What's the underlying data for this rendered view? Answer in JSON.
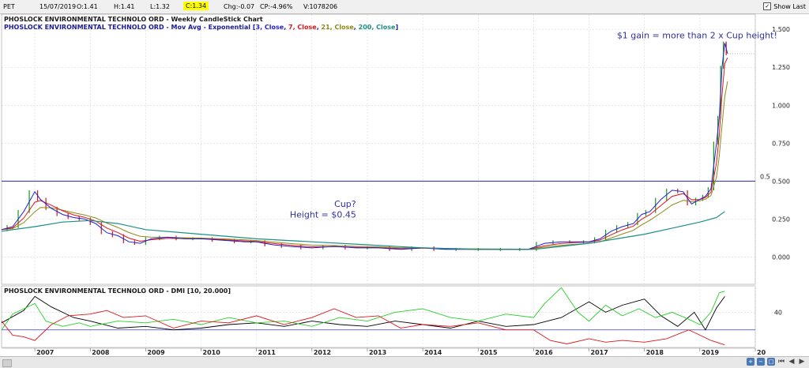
{
  "header": {
    "symbol": "PET",
    "date": "15/07/2019",
    "open": "O:1.41",
    "high": "H:1.41",
    "low": "L:1.32",
    "close": "C:1.34",
    "change": "Chg:-0.07",
    "change_pct": "CP:-4.96%",
    "volume": "V:1078206",
    "show_last_label": "Show Last",
    "show_last_checked": "✓"
  },
  "colors": {
    "ema3": "#1f1fd6",
    "ema7": "#e0141a",
    "ema21": "#8d8a14",
    "ema200": "#1b8f86",
    "dmi_plus": "#27d027",
    "dmi_minus": "#e0141a",
    "adx": "#000000",
    "hline": "#2a2a9a",
    "annotation": "#3030a0"
  },
  "chart_data": [
    {
      "type": "line",
      "title": "PHOSLOCK ENVIRONMENTAL TECHNOLO ORD - Weekly CandleStick Chart",
      "legend_prefix": "PHOSLOCK ENVIRONMENTAL TECHNOLO ORD - Mov Avg - Exponential [",
      "legend_items": [
        {
          "label": "3, Close",
          "color": "#1f1fd6"
        },
        {
          "label": "7, Close",
          "color": "#e0141a"
        },
        {
          "label": "21, Close",
          "color": "#8d8a14"
        },
        {
          "label": "200, Close",
          "color": "#1b8f86"
        }
      ],
      "legend_suffix": "]",
      "ylim": [
        -0.18,
        1.6
      ],
      "yticks": [
        "0.000",
        "0.250",
        "0.500",
        "0.750",
        "1.000",
        "1.250",
        "1.500"
      ],
      "ytick_values": [
        0,
        0.25,
        0.5,
        0.75,
        1.0,
        1.25,
        1.5
      ],
      "xlim": [
        2006.4,
        2020.0
      ],
      "xticks": [
        "2007",
        "2008",
        "2009",
        "2010",
        "2011",
        "2012",
        "2013",
        "2014",
        "2015",
        "2016",
        "2017",
        "2018",
        "2019",
        "20"
      ],
      "xtick_values": [
        2007,
        2008,
        2009,
        2010,
        2011,
        2012,
        2013,
        2014,
        2015,
        2016,
        2017,
        2018,
        2019,
        2020
      ],
      "grid": true,
      "hline": {
        "value": 0.5,
        "label": "0.5"
      },
      "annotations": [
        {
          "text": "Cup?",
          "x": 2012.6,
          "y": 0.33
        },
        {
          "text": "Height = $0.45",
          "x": 2012.2,
          "y": 0.26
        },
        {
          "text": "$1 gain = more than 2 x Cup height!",
          "x": 2018.95,
          "y": 1.44
        }
      ],
      "price": {
        "x": [
          2006.4,
          2006.6,
          2006.8,
          2007.0,
          2007.1,
          2007.3,
          2007.5,
          2007.7,
          2007.9,
          2008.1,
          2008.3,
          2008.5,
          2008.7,
          2008.9,
          2009.1,
          2009.4,
          2009.7,
          2010.0,
          2010.4,
          2010.8,
          2011.0,
          2011.3,
          2011.6,
          2012.0,
          2012.4,
          2012.8,
          2013.2,
          2013.6,
          2014.0,
          2014.4,
          2014.8,
          2015.2,
          2015.6,
          2015.9,
          2016.2,
          2016.5,
          2016.8,
          2017.0,
          2017.2,
          2017.4,
          2017.6,
          2017.8,
          2017.95,
          2018.1,
          2018.3,
          2018.5,
          2018.7,
          2018.85,
          2019.0,
          2019.1,
          2019.2,
          2019.3,
          2019.35,
          2019.4,
          2019.45,
          2019.5
        ],
        "y": [
          0.18,
          0.2,
          0.3,
          0.43,
          0.38,
          0.32,
          0.28,
          0.26,
          0.25,
          0.22,
          0.16,
          0.14,
          0.1,
          0.09,
          0.12,
          0.13,
          0.12,
          0.12,
          0.11,
          0.1,
          0.1,
          0.08,
          0.07,
          0.06,
          0.07,
          0.06,
          0.06,
          0.05,
          0.06,
          0.05,
          0.05,
          0.05,
          0.05,
          0.05,
          0.09,
          0.1,
          0.1,
          0.1,
          0.12,
          0.17,
          0.2,
          0.22,
          0.28,
          0.3,
          0.38,
          0.44,
          0.43,
          0.35,
          0.38,
          0.4,
          0.45,
          0.75,
          0.92,
          1.25,
          1.41,
          1.34
        ]
      },
      "ema200": {
        "x": [
          2006.4,
          2007.0,
          2007.5,
          2008.0,
          2008.5,
          2009.0,
          2010.0,
          2011.0,
          2012.0,
          2013.0,
          2014.0,
          2015.0,
          2015.5,
          2016.0,
          2016.5,
          2017.0,
          2017.5,
          2018.0,
          2018.5,
          2019.0,
          2019.3,
          2019.45
        ],
        "y": [
          0.17,
          0.2,
          0.23,
          0.24,
          0.22,
          0.18,
          0.15,
          0.12,
          0.1,
          0.08,
          0.06,
          0.05,
          0.05,
          0.05,
          0.07,
          0.09,
          0.12,
          0.15,
          0.19,
          0.23,
          0.26,
          0.3
        ]
      }
    },
    {
      "type": "line",
      "title": "PHOSLOCK ENVIRONMENTAL TECHNOLO ORD - DMI [10, 20.000]",
      "yticks": [
        "40"
      ],
      "ytick_values": [
        40
      ],
      "ylim": [
        0,
        70
      ],
      "reference_level": 20,
      "series": [
        {
          "name": "ADX",
          "x": [
            2006.4,
            2006.8,
            2007.0,
            2007.3,
            2007.7,
            2008.0,
            2008.5,
            2009.0,
            2009.5,
            2010.0,
            2010.5,
            2011.0,
            2011.5,
            2012.0,
            2012.5,
            2013.0,
            2013.5,
            2014.0,
            2014.5,
            2015.0,
            2015.5,
            2016.0,
            2016.5,
            2017.0,
            2017.3,
            2017.6,
            2018.0,
            2018.3,
            2018.6,
            2018.9,
            2019.1,
            2019.3,
            2019.45
          ],
          "y": [
            28,
            42,
            58,
            46,
            34,
            30,
            22,
            24,
            20,
            22,
            26,
            28,
            24,
            30,
            26,
            24,
            30,
            26,
            22,
            30,
            24,
            26,
            34,
            52,
            40,
            48,
            55,
            36,
            24,
            40,
            20,
            45,
            58
          ]
        },
        {
          "name": "DI+",
          "x": [
            2006.4,
            2006.6,
            2006.8,
            2007.0,
            2007.2,
            2007.5,
            2007.8,
            2008.0,
            2008.5,
            2009.0,
            2009.5,
            2010.0,
            2010.5,
            2011.0,
            2011.5,
            2012.0,
            2012.5,
            2013.0,
            2013.5,
            2014.0,
            2014.5,
            2015.0,
            2015.5,
            2016.0,
            2016.2,
            2016.5,
            2016.8,
            2017.0,
            2017.3,
            2017.6,
            2017.9,
            2018.2,
            2018.5,
            2018.8,
            2019.0,
            2019.2,
            2019.35,
            2019.45
          ],
          "y": [
            20,
            38,
            44,
            50,
            30,
            24,
            28,
            24,
            30,
            28,
            32,
            26,
            34,
            28,
            30,
            24,
            34,
            30,
            40,
            44,
            34,
            30,
            38,
            34,
            50,
            68,
            40,
            30,
            48,
            36,
            44,
            34,
            40,
            32,
            26,
            40,
            62,
            64
          ]
        },
        {
          "name": "DI-",
          "x": [
            2006.4,
            2006.6,
            2006.8,
            2007.0,
            2007.3,
            2007.6,
            2008.0,
            2008.3,
            2008.6,
            2009.0,
            2009.5,
            2010.0,
            2010.5,
            2011.0,
            2011.5,
            2012.0,
            2012.4,
            2012.8,
            2013.2,
            2013.6,
            2014.0,
            2014.5,
            2015.0,
            2015.5,
            2016.0,
            2016.3,
            2016.6,
            2017.0,
            2017.3,
            2017.6,
            2018.0,
            2018.4,
            2018.8,
            2019.0,
            2019.2,
            2019.45
          ],
          "y": [
            30,
            14,
            12,
            8,
            26,
            36,
            38,
            42,
            34,
            36,
            22,
            30,
            28,
            36,
            26,
            34,
            44,
            34,
            36,
            22,
            26,
            24,
            28,
            20,
            20,
            8,
            4,
            10,
            6,
            8,
            6,
            10,
            20,
            14,
            8,
            3
          ]
        }
      ]
    }
  ]
}
